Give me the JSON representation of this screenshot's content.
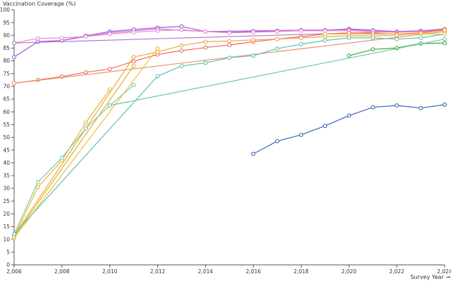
{
  "chart_data": {
    "type": "line",
    "title": "",
    "xlabel": "Survey Year →",
    "ylabel": "Vaccination Coverage (%)",
    "xlim": [
      2006,
      2024
    ],
    "ylim": [
      0,
      100
    ],
    "x_ticks": [
      2006,
      2008,
      2010,
      2012,
      2014,
      2016,
      2018,
      2020,
      2022,
      2024
    ],
    "x_tick_labels": [
      "2,006",
      "2,008",
      "2,010",
      "2,012",
      "2,014",
      "2,016",
      "2,018",
      "2,020",
      "2,022",
      "2,024"
    ],
    "y_ticks": [
      0,
      5,
      10,
      15,
      20,
      25,
      30,
      35,
      40,
      45,
      50,
      55,
      60,
      65,
      70,
      75,
      80,
      85,
      90,
      95,
      100
    ],
    "grid": false,
    "legend": "none",
    "series": [
      {
        "color": "#3a63b5",
        "points": [
          [
            2016,
            43.5
          ],
          [
            2017,
            48.5
          ],
          [
            2018,
            51
          ],
          [
            2019,
            54.5
          ],
          [
            2020,
            58.5
          ],
          [
            2021,
            61.8
          ],
          [
            2022,
            62.5
          ],
          [
            2023,
            61.5
          ],
          [
            2024,
            62.8
          ]
        ]
      },
      {
        "color": "#3ca33c",
        "points": [
          [
            2020,
            82
          ],
          [
            2021,
            84.5
          ],
          [
            2022,
            85
          ],
          [
            2023,
            86.8
          ],
          [
            2024,
            87
          ]
        ]
      },
      {
        "color": "#9b59d0",
        "points": [
          [
            2006,
            81.5
          ],
          [
            2007,
            87.5
          ],
          [
            2008,
            88
          ],
          [
            2009,
            89.8
          ],
          [
            2010,
            91.5
          ],
          [
            2011,
            92.3
          ],
          [
            2012,
            93
          ],
          [
            2013,
            93.5
          ],
          [
            2014,
            91.5
          ],
          [
            2015,
            91.2
          ],
          [
            2016,
            91.5
          ],
          [
            2017,
            91.8
          ],
          [
            2018,
            92
          ],
          [
            2019,
            92
          ],
          [
            2020,
            92.5
          ],
          [
            2021,
            92
          ],
          [
            2022,
            91.5
          ],
          [
            2023,
            91.8
          ],
          [
            2024,
            92.5
          ]
        ]
      },
      {
        "color": "#c16ce0",
        "points": [
          [
            2008,
            88
          ],
          [
            2010,
            91
          ],
          [
            2012,
            92.5
          ],
          [
            2014,
            91.5
          ],
          [
            2016,
            91.8
          ],
          [
            2018,
            92
          ],
          [
            2020,
            92.2
          ],
          [
            2022,
            91.5
          ],
          [
            2024,
            92.2
          ]
        ]
      },
      {
        "color": "#ee88cc",
        "points": [
          [
            2006,
            87
          ],
          [
            2007,
            88.8
          ],
          [
            2008,
            89
          ],
          [
            2009,
            89.5
          ],
          [
            2010,
            90.5
          ],
          [
            2011,
            91.2
          ],
          [
            2012,
            91.8
          ],
          [
            2013,
            92.2
          ],
          [
            2014,
            91.5
          ],
          [
            2015,
            91
          ],
          [
            2016,
            91.2
          ],
          [
            2017,
            91.5
          ],
          [
            2018,
            91.8
          ],
          [
            2019,
            91.8
          ],
          [
            2020,
            91.8
          ],
          [
            2021,
            91.5
          ],
          [
            2022,
            91.2
          ],
          [
            2023,
            91.5
          ],
          [
            2024,
            92
          ]
        ]
      },
      {
        "color": "#b07ad8",
        "points": [
          [
            2006,
            87
          ],
          [
            2024,
            92
          ]
        ]
      },
      {
        "color": "#f26b5b",
        "points": [
          [
            2006,
            71.2
          ],
          [
            2007,
            72.5
          ],
          [
            2008,
            73.8
          ],
          [
            2009,
            75.5
          ],
          [
            2010,
            76.8
          ],
          [
            2011,
            79.8
          ],
          [
            2012,
            82.5
          ],
          [
            2013,
            84
          ],
          [
            2014,
            85.2
          ],
          [
            2015,
            86.2
          ],
          [
            2016,
            87.5
          ],
          [
            2017,
            88.5
          ],
          [
            2018,
            89.5
          ],
          [
            2019,
            90.5
          ],
          [
            2020,
            91
          ],
          [
            2021,
            90.8
          ],
          [
            2022,
            90.5
          ],
          [
            2023,
            91
          ],
          [
            2024,
            92.5
          ]
        ]
      },
      {
        "color": "#f09070",
        "points": [
          [
            2006,
            71.2
          ],
          [
            2024,
            91.5
          ]
        ]
      },
      {
        "color": "#f5a142",
        "points": [
          [
            2006,
            11.5
          ],
          [
            2011,
            81.5
          ],
          [
            2012,
            83.5
          ],
          [
            2013,
            86
          ],
          [
            2014,
            87.5
          ],
          [
            2015,
            87.8
          ],
          [
            2016,
            88.2
          ],
          [
            2017,
            88.5
          ],
          [
            2018,
            89
          ],
          [
            2019,
            89.5
          ],
          [
            2020,
            89.8
          ],
          [
            2021,
            89.8
          ],
          [
            2022,
            90
          ],
          [
            2023,
            90.8
          ],
          [
            2024,
            92
          ]
        ]
      },
      {
        "color": "#e8b820",
        "points": [
          [
            2006,
            11
          ],
          [
            2007,
            30.5
          ],
          [
            2008,
            41
          ],
          [
            2009,
            55.8
          ],
          [
            2010,
            68.8
          ]
        ]
      },
      {
        "color": "#f0c030",
        "points": [
          [
            2006,
            10.5
          ],
          [
            2012,
            84.8
          ]
        ]
      },
      {
        "color": "#d8b428",
        "points": [
          [
            2006,
            11
          ],
          [
            2011,
            78
          ]
        ]
      },
      {
        "color": "#7ec8a8",
        "points": [
          [
            2006,
            12
          ],
          [
            2007,
            32.5
          ],
          [
            2008,
            42
          ],
          [
            2009,
            53.5
          ],
          [
            2010,
            62.5
          ],
          [
            2011,
            70.5
          ]
        ]
      },
      {
        "color": "#5cc0b0",
        "points": [
          [
            2006,
            12
          ],
          [
            2012,
            74
          ],
          [
            2013,
            78
          ],
          [
            2014,
            79.2
          ],
          [
            2015,
            81.2
          ],
          [
            2016,
            82
          ],
          [
            2017,
            84.8
          ],
          [
            2018,
            86.5
          ],
          [
            2019,
            88
          ],
          [
            2020,
            89
          ],
          [
            2021,
            89
          ],
          [
            2022,
            88.5
          ],
          [
            2023,
            89
          ],
          [
            2024,
            90.5
          ]
        ]
      },
      {
        "color": "#66ccaa",
        "points": [
          [
            2010,
            62.5
          ],
          [
            2024,
            88.5
          ]
        ]
      },
      {
        "color": "#e5c940",
        "points": [
          [
            2019,
            90.5
          ],
          [
            2024,
            90.5
          ]
        ]
      }
    ]
  }
}
